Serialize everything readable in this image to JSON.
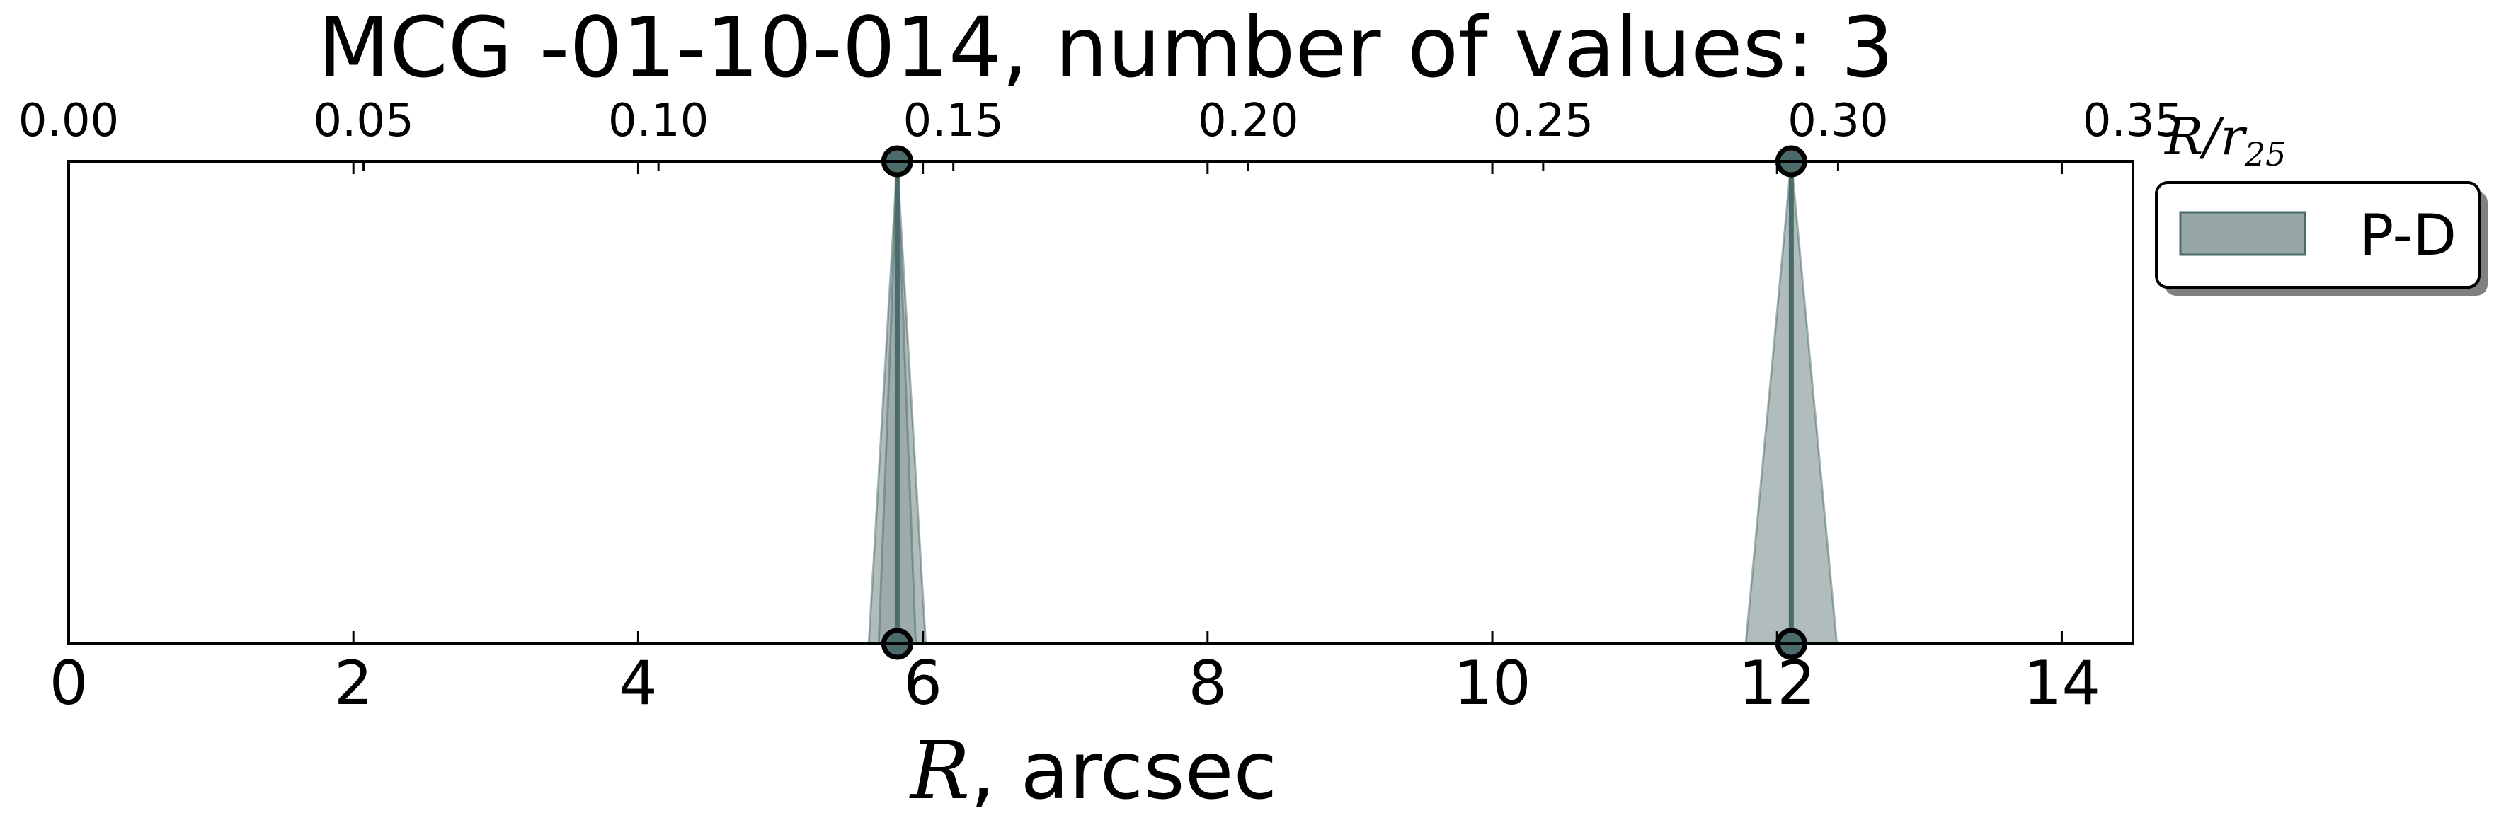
{
  "chart_data": {
    "type": "area",
    "title": "MCG -01-10-014, number of values: 3",
    "xlabel_math": "R",
    "xlabel_rest": ", arcsec",
    "xlim": [
      0,
      14.5
    ],
    "x_ticks": [
      0,
      2,
      4,
      6,
      8,
      10,
      12,
      14
    ],
    "top_axis": {
      "label_main": "R/r",
      "label_sub": "25",
      "lim": [
        0,
        0.35
      ],
      "ticks": [
        "0.00",
        "0.05",
        "0.10",
        "0.15",
        "0.20",
        "0.25",
        "0.30",
        "0.35"
      ]
    },
    "grid": false,
    "legend_position": "outside-right-top",
    "series": [
      {
        "name": "P-D",
        "color": "#4a6b6a",
        "fill": "#97a7a6",
        "peaks": [
          {
            "x": 5.82,
            "half_width": 0.2,
            "stack": 2
          },
          {
            "x": 12.1,
            "half_width": 0.32,
            "stack": 1
          }
        ],
        "points": [
          {
            "x": 5.82,
            "y": "top"
          },
          {
            "x": 5.82,
            "y": "bottom"
          },
          {
            "x": 12.1,
            "y": "top"
          },
          {
            "x": 12.1,
            "y": "bottom"
          }
        ]
      }
    ]
  }
}
